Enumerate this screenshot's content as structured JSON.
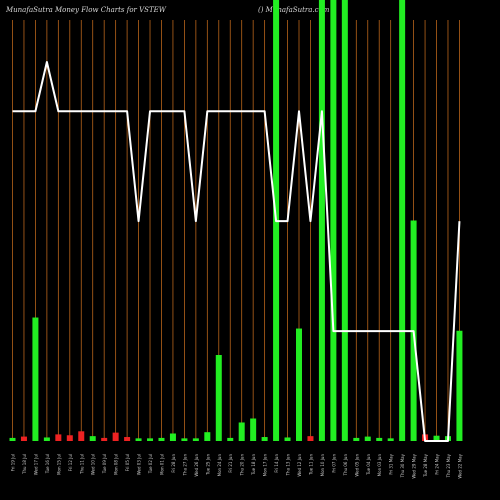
{
  "header": {
    "title_left": "MunafaSutra  Money Flow  Charts for VSTEW",
    "title_right": "() MunafaSutra.com"
  },
  "colors": {
    "background": "#000000",
    "grid": "#b8651b",
    "up": "#22ee22",
    "down": "#ee2222",
    "line": "#ffffff",
    "tick_text": "#cccccc"
  },
  "chart_data": {
    "type": "bar",
    "title": "",
    "xlabel": "",
    "ylabel": "",
    "ylim": [
      0,
      100
    ],
    "categories": [
      "Fri 19 Jul",
      "Thu 18 Jul",
      "Wed 17 Jul",
      "Tue 16 Jul",
      "Mon 15 Jul",
      "Fri 12 Jul",
      "Thu 11 Jul",
      "Wed 10 Jul",
      "Tue 09 Jul",
      "Mon 08 Jul",
      "Fri 05 Jul",
      "Wed 03 Jul",
      "Tue 02 Jul",
      "Mon 01 Jul",
      "Fri 28 Jun",
      "Thu 27 Jun",
      "Wed 26 Jun",
      "Tue 25 Jun",
      "Mon 24 Jun",
      "Fri 21 Jun",
      "Thu 20 Jun",
      "Tue 18 Jun",
      "Mon 17 Jun",
      "Fri 14 Jun",
      "Thu 13 Jun",
      "Wed 12 Jun",
      "Tue 11 Jun",
      "Mon 10 Jun",
      "Fri 07 Jun",
      "Thu 06 Jun",
      "Wed 05 Jun",
      "Tue 04 Jun",
      "Mon 03 Jun",
      "Fri 31 May",
      "Thu 30 May",
      "Wed 29 May",
      "Tue 28 May",
      "Fri 24 May",
      "Thu 23 May",
      "Wed 22 May"
    ],
    "series": [
      {
        "type": "bar",
        "values": [
          0.7,
          1,
          28,
          0.8,
          1.5,
          1.3,
          2.2,
          1.1,
          0.7,
          1.9,
          0.9,
          0.6,
          0.6,
          0.7,
          1.7,
          0.6,
          0.6,
          2,
          19.5,
          0.7,
          4.2,
          5.1,
          0.9,
          100,
          0.8,
          25.5,
          1.1,
          100,
          100,
          100,
          0.7,
          1,
          0.7,
          0.6,
          100,
          50,
          1.5,
          1.2,
          1.1,
          25
        ],
        "directions": [
          "up",
          "down",
          "up",
          "up",
          "down",
          "down",
          "down",
          "up",
          "down",
          "down",
          "down",
          "up",
          "up",
          "up",
          "up",
          "up",
          "up",
          "up",
          "up",
          "up",
          "up",
          "up",
          "up",
          "up",
          "up",
          "up",
          "down",
          "up",
          "up",
          "up",
          "up",
          "up",
          "up",
          "up",
          "up",
          "up",
          "down",
          "up",
          "up",
          "up"
        ]
      },
      {
        "type": "line",
        "values": [
          87,
          87,
          87,
          100,
          87,
          87,
          87,
          87,
          87,
          87,
          87,
          58,
          87,
          87,
          87,
          87,
          58,
          87,
          87,
          87,
          87,
          87,
          87,
          58,
          58,
          87,
          58,
          87,
          29,
          29,
          29,
          29,
          29,
          29,
          29,
          29,
          0,
          0,
          0,
          58
        ]
      }
    ],
    "grid": true,
    "legend": "none"
  }
}
